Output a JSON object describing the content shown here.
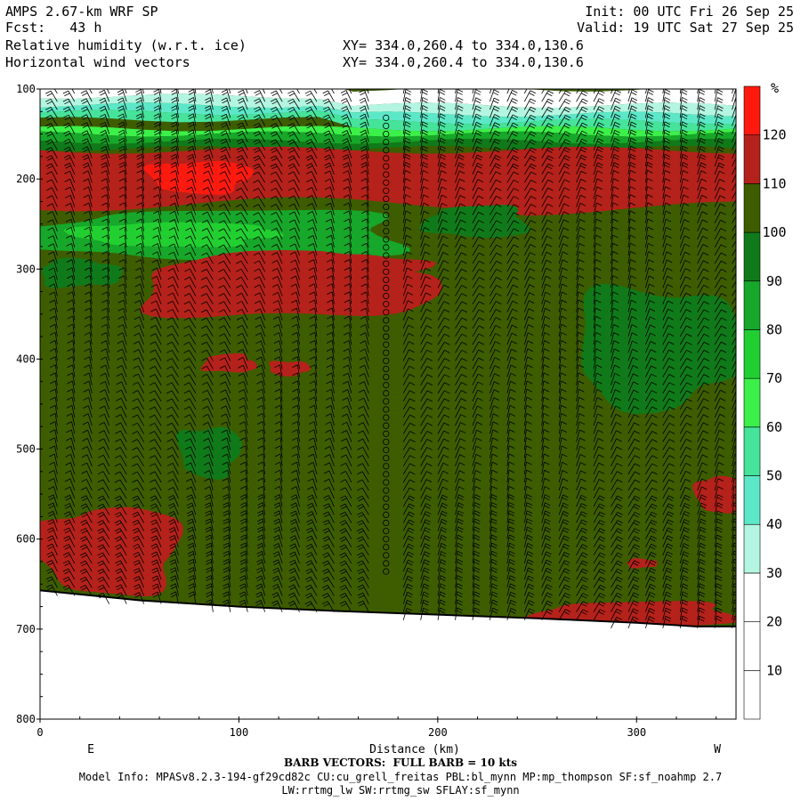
{
  "header": {
    "model": "AMPS 2.67-km WRF SP",
    "forecast": "Fcst:   43 h",
    "init": "Init: 00 UTC Fri 26 Sep 25",
    "valid": "Valid: 19 UTC Sat 27 Sep 25",
    "field1": "Relative humidity (w.r.t. ice)",
    "field2": "Horizontal wind vectors",
    "xy1": "XY= 334.0,260.4 to 334.0,130.6",
    "xy2": "XY= 334.0,260.4 to 334.0,130.6"
  },
  "chart_data": {
    "type": "heatmap",
    "title": "Relative humidity (w.r.t. ice)",
    "xlabel": "Distance (km)",
    "ylabel": "",
    "xlim": [
      0,
      350
    ],
    "ylim": [
      800,
      100
    ],
    "x_ticks": [
      0,
      100,
      200,
      300
    ],
    "y_ticks": [
      100,
      200,
      300,
      400,
      500,
      600,
      700,
      800
    ],
    "left_end_label": "E",
    "right_end_label": "W",
    "colorbar": {
      "unit": "%",
      "levels": [
        10,
        20,
        30,
        40,
        50,
        60,
        70,
        80,
        90,
        100,
        110,
        120
      ],
      "colors": [
        "#ffffff",
        "#ffffff",
        "#ffffff",
        "#b4f5e1",
        "#5ce8c8",
        "#46e39b",
        "#3cf04a",
        "#22cf31",
        "#17a72a",
        "#107a1a",
        "#3d5d00",
        "#b5221b",
        "#ff1a10"
      ]
    },
    "terrain_pressure": [
      [
        0,
        657
      ],
      [
        50,
        668
      ],
      [
        100,
        675
      ],
      [
        150,
        680
      ],
      [
        200,
        684
      ],
      [
        250,
        688
      ],
      [
        300,
        693
      ],
      [
        330,
        697
      ],
      [
        350,
        697
      ]
    ],
    "rh_regions": [
      {
        "name": "top dry layer",
        "value": 20,
        "x": [
          0,
          350
        ],
        "p": [
          100,
          130
        ]
      },
      {
        "name": "moist band",
        "value": 115,
        "x": [
          0,
          350
        ],
        "p": [
          165,
          240
        ]
      },
      {
        "name": "peak near 200 hPa",
        "value": 125,
        "x": [
          55,
          105
        ],
        "p": [
          180,
          215
        ]
      },
      {
        "name": "lower RH band",
        "value": 85,
        "x": [
          0,
          185
        ],
        "p": [
          235,
          290
        ]
      },
      {
        "name": "mid moist patch",
        "value": 115,
        "x": [
          50,
          195
        ],
        "p": [
          285,
          355
        ]
      },
      {
        "name": "drier patch east",
        "value": 95,
        "x": [
          270,
          350
        ],
        "p": [
          320,
          450
        ]
      },
      {
        "name": "low-level moist",
        "value": 115,
        "x": [
          0,
          70
        ],
        "p": [
          565,
          660
        ]
      },
      {
        "name": "near-surface moist west",
        "value": 115,
        "x": [
          250,
          350
        ],
        "p": [
          670,
          697
        ]
      }
    ],
    "wind": {
      "barb_units": "kts",
      "full_barb": 10,
      "calm_column_x_km": 175
    }
  },
  "footer": {
    "barb_note": "BARB VECTORS:  FULL BARB = 10 kts",
    "model_info": "Model Info: MPASv8.2.3-194-gf29cd82c CU:cu_grell_freitas PBL:bl_mynn MP:mp_thompson SF:sf_noahmp 2.7",
    "model_info2": "LW:rrtmg_lw SW:rrtmg_sw SFLAY:sf_mynn"
  }
}
